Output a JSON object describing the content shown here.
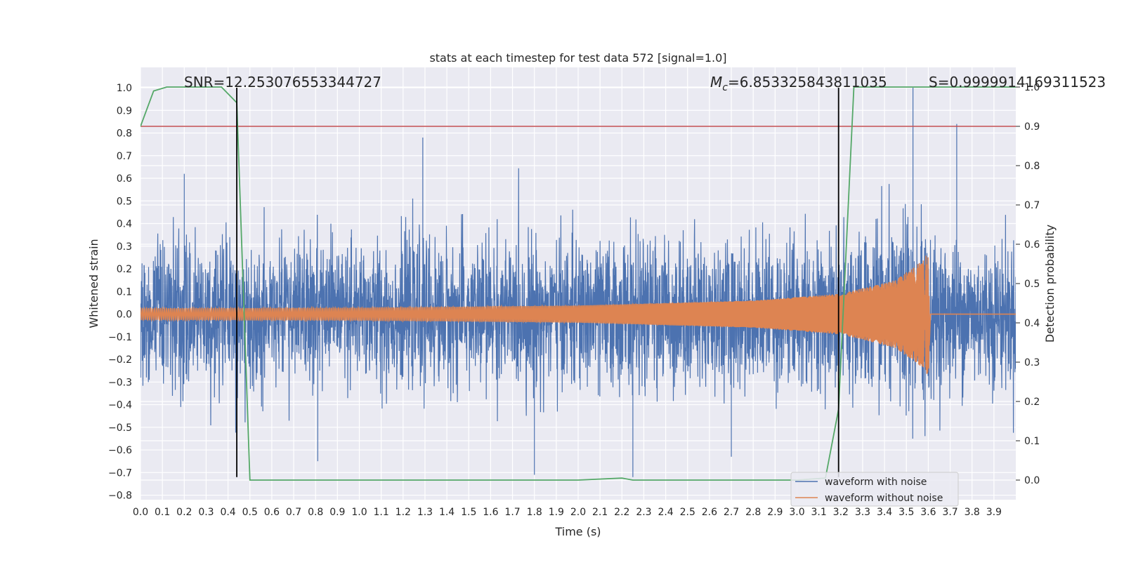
{
  "chart_data": {
    "type": "line",
    "title": "stats at each timestep for test data 572 [signal=1.0]",
    "xlabel": "Time (s)",
    "ylabel": "Whitened strain",
    "ylabel_right": "Detection probability",
    "xlim": [
      0.0,
      4.0
    ],
    "ylim": [
      -0.82,
      1.09
    ],
    "ylim_right": [
      -0.05,
      1.05
    ],
    "x_ticks": [
      "0.0",
      "0.1",
      "0.2",
      "0.3",
      "0.4",
      "0.5",
      "0.6",
      "0.7",
      "0.8",
      "0.9",
      "1.0",
      "1.1",
      "1.2",
      "1.3",
      "1.4",
      "1.5",
      "1.6",
      "1.7",
      "1.8",
      "1.9",
      "2.0",
      "2.1",
      "2.2",
      "2.3",
      "2.4",
      "2.5",
      "2.6",
      "2.7",
      "2.8",
      "2.9",
      "3.0",
      "3.1",
      "3.2",
      "3.3",
      "3.4",
      "3.5",
      "3.6",
      "3.7",
      "3.8",
      "3.9"
    ],
    "y_ticks_left": [
      "1.0",
      "0.9",
      "0.8",
      "0.7",
      "0.6",
      "0.5",
      "0.4",
      "0.3",
      "0.2",
      "0.1",
      "0.0",
      "−0.1",
      "−0.2",
      "−0.3",
      "−0.4",
      "−0.5",
      "−0.6",
      "−0.7",
      "−0.8"
    ],
    "y_ticks_right": [
      "1.0",
      "0.9",
      "0.8",
      "0.7",
      "0.6",
      "0.5",
      "0.4",
      "0.3",
      "0.2",
      "0.1",
      "0.0"
    ],
    "grid": true,
    "legend_position": "bottom-right",
    "annotations": {
      "snr": "SNR=12.253076553344727",
      "mc_symbol": "M",
      "mc_sub": "c",
      "mc_value": "=6.853325843811035",
      "s": "S=0.9999914169311523"
    },
    "series": [
      {
        "name": "waveform with noise",
        "color": "#4c72b0",
        "axis": "left",
        "amplitude_std": 0.155,
        "spikes": [
          [
            0.2,
            0.62
          ],
          [
            1.29,
            0.78
          ],
          [
            1.8,
            -0.71
          ],
          [
            2.25,
            -0.72
          ],
          [
            3.53,
            1.0
          ],
          [
            3.73,
            0.84
          ],
          [
            0.81,
            -0.65
          ],
          [
            2.7,
            -0.63
          ]
        ]
      },
      {
        "name": "waveform without noise",
        "color": "#dd8452",
        "axis": "left",
        "envelope": [
          [
            0.0,
            0.025
          ],
          [
            1.0,
            0.028
          ],
          [
            2.0,
            0.038
          ],
          [
            2.8,
            0.06
          ],
          [
            3.2,
            0.09
          ],
          [
            3.45,
            0.15
          ],
          [
            3.58,
            0.24
          ],
          [
            3.6,
            0.28
          ],
          [
            3.61,
            0.0
          ]
        ],
        "phase_cycles": 180
      },
      {
        "name": "detection probability",
        "color": "#55a868",
        "axis": "right",
        "x": [
          0.0,
          0.06,
          0.12,
          0.2,
          0.3,
          0.37,
          0.44,
          0.5,
          0.55,
          1.0,
          1.5,
          2.0,
          2.2,
          2.25,
          2.3,
          2.5,
          3.0,
          3.13,
          3.19,
          3.26,
          3.3,
          3.5,
          4.0
        ],
        "y": [
          0.9,
          0.99,
          1.0,
          1.0,
          1.0,
          1.0,
          0.96,
          0.0,
          0.0,
          0.0,
          0.0,
          0.0,
          0.005,
          0.0,
          0.0,
          0.0,
          0.0,
          0.005,
          0.18,
          1.0,
          1.0,
          1.0,
          1.0
        ]
      }
    ],
    "threshold": {
      "axis": "right",
      "value": 0.9,
      "color": "#c44e52"
    },
    "vlines": [
      {
        "x": 0.44,
        "from": -0.72,
        "to": 1.0
      },
      {
        "x": 3.19,
        "from": -0.72,
        "to": 1.0
      }
    ],
    "vline_color": "#000000"
  }
}
